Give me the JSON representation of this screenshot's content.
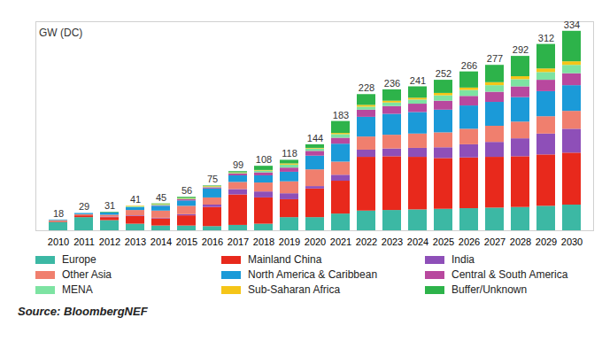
{
  "chart_data": {
    "type": "bar",
    "stacked": true,
    "ylabel": "GW (DC)",
    "source": "Source: BloombergNEF",
    "categories": [
      "2010",
      "2011",
      "2012",
      "2013",
      "2014",
      "2015",
      "2016",
      "2017",
      "2018",
      "2019",
      "2020",
      "2021",
      "2022",
      "2023",
      "2024",
      "2025",
      "2026",
      "2027",
      "2028",
      "2029",
      "2030"
    ],
    "totals": [
      18,
      29,
      31,
      41,
      45,
      56,
      75,
      99,
      108,
      118,
      144,
      183,
      228,
      236,
      241,
      252,
      266,
      277,
      292,
      312,
      334
    ],
    "series": [
      {
        "name": "Europe",
        "color": "#3cb8a4",
        "values": [
          14,
          22,
          17,
          11,
          8,
          8,
          7,
          9,
          11,
          22,
          22,
          28,
          33,
          34,
          35,
          36,
          37,
          38,
          39,
          41,
          43
        ]
      },
      {
        "name": "Mainland China",
        "color": "#e8291c",
        "values": [
          1,
          3,
          5,
          13,
          12,
          17,
          32,
          51,
          44,
          30,
          48,
          55,
          90,
          90,
          88,
          85,
          85,
          85,
          85,
          86,
          87
        ]
      },
      {
        "name": "India",
        "color": "#8e4fb8",
        "values": [
          0,
          0,
          1,
          1,
          1,
          2,
          4,
          9,
          10,
          10,
          4,
          10,
          12,
          13,
          15,
          18,
          22,
          25,
          30,
          35,
          40
        ]
      },
      {
        "name": "Other Asia",
        "color": "#f07f6e",
        "values": [
          2,
          2,
          3,
          9,
          12,
          14,
          12,
          12,
          15,
          20,
          28,
          22,
          22,
          23,
          24,
          25,
          26,
          27,
          28,
          29,
          30
        ]
      },
      {
        "name": "North America & Caribbean",
        "color": "#1b9ad8",
        "values": [
          1,
          2,
          4,
          5,
          8,
          9,
          15,
          11,
          12,
          16,
          23,
          30,
          33,
          35,
          36,
          38,
          39,
          40,
          41,
          42,
          43
        ]
      },
      {
        "name": "Central & South America",
        "color": "#b8489e",
        "values": [
          0,
          0,
          0,
          0,
          1,
          2,
          2,
          3,
          5,
          7,
          8,
          10,
          12,
          13,
          14,
          15,
          16,
          17,
          18,
          19,
          20
        ]
      },
      {
        "name": "MENA",
        "color": "#7de3a2",
        "values": [
          0,
          0,
          0,
          1,
          1,
          1,
          1,
          1,
          3,
          5,
          4,
          6,
          5,
          6,
          7,
          9,
          10,
          11,
          12,
          13,
          14
        ]
      },
      {
        "name": "Sub-Saharan Africa",
        "color": "#f5c518",
        "values": [
          0,
          0,
          0,
          1,
          1,
          1,
          1,
          1,
          1,
          2,
          1,
          2,
          3,
          3,
          3,
          4,
          4,
          5,
          5,
          6,
          6
        ]
      },
      {
        "name": "Buffer/Unknown",
        "color": "#2db34a",
        "values": [
          0,
          0,
          1,
          0,
          1,
          2,
          1,
          2,
          7,
          6,
          6,
          20,
          18,
          19,
          19,
          22,
          27,
          29,
          34,
          41,
          51
        ]
      }
    ],
    "ylim": [
      0,
      350
    ],
    "yticks": [],
    "grid": false,
    "tick_labels": "x",
    "legend": "bottom"
  }
}
